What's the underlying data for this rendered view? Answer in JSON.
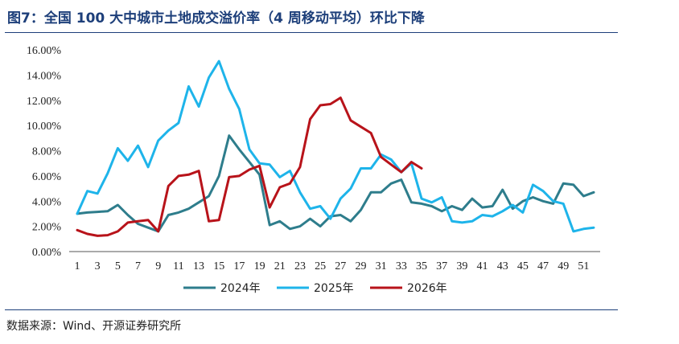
{
  "title": "图7：全国 100 大中城市土地成交溢价率（4 周移动平均）环比下降",
  "source": "数据来源：Wind、开源证券研究所",
  "chart_data": {
    "type": "line",
    "x": [
      1,
      2,
      3,
      4,
      5,
      6,
      7,
      8,
      9,
      10,
      11,
      12,
      13,
      14,
      15,
      16,
      17,
      18,
      19,
      20,
      21,
      22,
      23,
      24,
      25,
      26,
      27,
      28,
      29,
      30,
      31,
      32,
      33,
      34,
      35,
      36,
      37,
      38,
      39,
      40,
      41,
      42,
      43,
      44,
      45,
      46,
      47,
      48,
      49,
      50,
      51,
      52
    ],
    "x_tick_labels": [
      "1",
      "3",
      "5",
      "7",
      "9",
      "11",
      "13",
      "15",
      "17",
      "19",
      "21",
      "23",
      "25",
      "27",
      "29",
      "31",
      "33",
      "35",
      "37",
      "39",
      "41",
      "43",
      "45",
      "47",
      "49",
      "51"
    ],
    "y_tick_labels": [
      "0.00%",
      "2.00%",
      "4.00%",
      "6.00%",
      "8.00%",
      "10.00%",
      "12.00%",
      "14.00%",
      "16.00%"
    ],
    "ylim": [
      0,
      16
    ],
    "legend_position": "bottom",
    "series": [
      {
        "name": "2024年",
        "color": "#2e7d8c",
        "values": [
          3.0,
          3.1,
          3.15,
          3.2,
          3.7,
          2.9,
          2.2,
          1.9,
          1.6,
          2.9,
          3.1,
          3.4,
          3.9,
          4.4,
          6.0,
          9.2,
          8.1,
          7.1,
          6.1,
          2.1,
          2.4,
          1.8,
          2.0,
          2.6,
          2.0,
          2.8,
          2.9,
          2.4,
          3.3,
          4.7,
          4.7,
          5.4,
          5.7,
          3.9,
          3.8,
          3.6,
          3.2,
          3.6,
          3.3,
          4.2,
          3.5,
          3.6,
          4.9,
          3.4,
          4.0,
          4.3,
          4.0,
          3.8,
          5.4,
          5.3,
          4.4,
          4.7
        ]
      },
      {
        "name": "2025年",
        "color": "#1eb4ea",
        "values": [
          3.0,
          4.8,
          4.6,
          6.2,
          8.2,
          7.2,
          8.4,
          6.7,
          8.8,
          9.6,
          10.2,
          13.1,
          11.5,
          13.8,
          15.1,
          12.9,
          11.3,
          8.1,
          7.0,
          6.9,
          5.9,
          6.4,
          4.7,
          3.4,
          3.6,
          2.6,
          4.2,
          5.0,
          6.6,
          6.6,
          7.7,
          7.3,
          6.3,
          7.0,
          4.2,
          3.9,
          4.3,
          2.4,
          2.3,
          2.4,
          2.9,
          2.8,
          3.2,
          3.7,
          3.1,
          5.3,
          4.8,
          4.0,
          3.8,
          1.6,
          1.8,
          1.9
        ]
      },
      {
        "name": "2026年",
        "color": "#b8131a",
        "values": [
          1.7,
          1.4,
          1.25,
          1.3,
          1.6,
          2.3,
          2.4,
          2.5,
          1.6,
          5.2,
          6.0,
          6.1,
          6.4,
          2.4,
          2.5,
          5.9,
          6.0,
          6.5,
          6.8,
          3.5,
          5.1,
          5.4,
          6.7,
          10.5,
          11.6,
          11.7,
          12.2,
          10.4,
          9.9,
          9.4,
          7.5,
          6.9,
          6.3,
          7.1,
          6.6,
          null,
          null,
          null,
          null,
          null,
          null,
          null,
          null,
          null,
          null,
          null,
          null,
          null,
          null,
          null,
          null,
          null
        ]
      }
    ]
  }
}
